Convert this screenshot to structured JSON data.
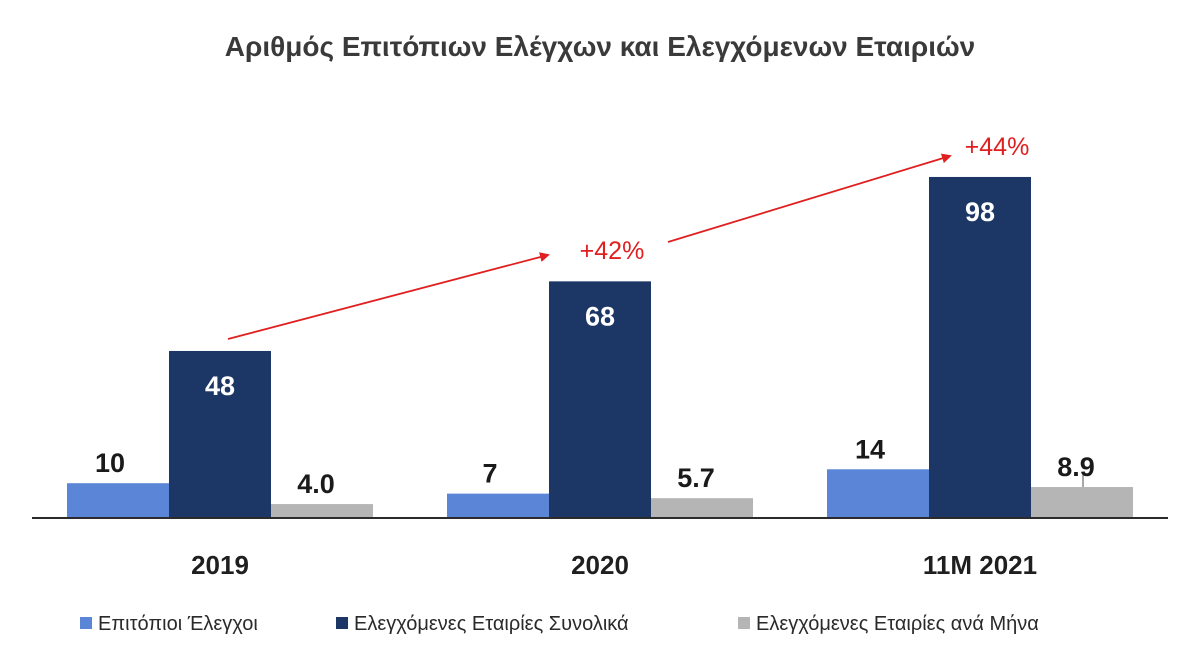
{
  "chart_data": {
    "type": "bar",
    "title": "Αριθμός Επιτόπιων Ελέγχων και Ελεγχόμενων Εταιριών",
    "categories": [
      "2019",
      "2020",
      "11M 2021"
    ],
    "series": [
      {
        "name": "Επιτόπιοι Έλεγχοι",
        "values": [
          10,
          7,
          14
        ],
        "labels": [
          "10",
          "7",
          "14"
        ],
        "color": "#5b85d6"
      },
      {
        "name": "Ελεγχόμενες Εταιρίες Συνολικά",
        "values": [
          48,
          68,
          98
        ],
        "labels": [
          "48",
          "68",
          "98"
        ],
        "color": "#1c3765"
      },
      {
        "name": "Ελεγχόμενες Εταιρίες ανά Μήνα",
        "values": [
          4.0,
          5.7,
          8.9
        ],
        "labels": [
          "4.0",
          "5.7",
          "8.9"
        ],
        "color": "#b5b5b5"
      }
    ],
    "annotations": [
      {
        "text": "+42%",
        "from_category": "2019",
        "to_category": "2020",
        "color": "#e02020"
      },
      {
        "text": "+44%",
        "from_category": "2020",
        "to_category": "11M 2021",
        "color": "#e02020"
      }
    ],
    "ylim": [
      0,
      110
    ],
    "grid": false,
    "legend_position": "bottom",
    "xlabel": "",
    "ylabel": ""
  }
}
